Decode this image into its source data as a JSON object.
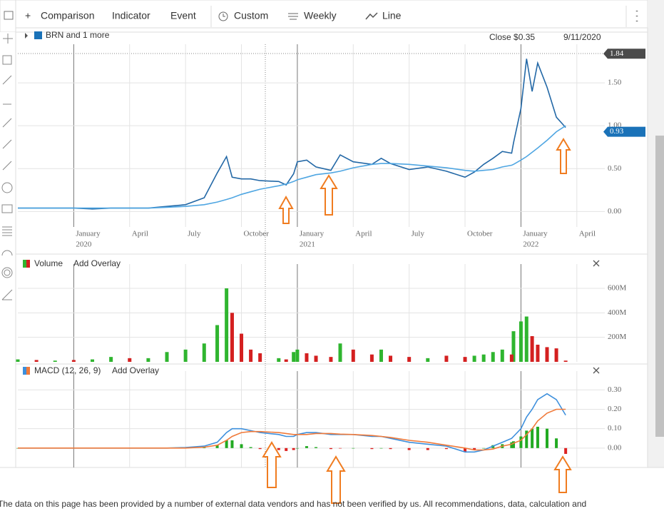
{
  "toolbar": {
    "items": [
      "Comparison",
      "Indicator",
      "Event",
      "Custom",
      "Weekly",
      "Line"
    ]
  },
  "chart": {
    "x": [
      0,
      1,
      2,
      3,
      4,
      5,
      6,
      7,
      8,
      9,
      10,
      10.7,
      11.2,
      11.5,
      12,
      12.5,
      13,
      14,
      14.4,
      14.8,
      15,
      15.5,
      16,
      16.8,
      17.3,
      18,
      19,
      19.5,
      20,
      21,
      22,
      23,
      24,
      24.5,
      25,
      25.5,
      26,
      26.5,
      26.6,
      27,
      27.3,
      27.6,
      27.9,
      28.4,
      28.9,
      29.4
    ],
    "xlim": [
      0,
      31.5
    ],
    "xticks": [
      {
        "value": 3,
        "label": "January",
        "year": "2020"
      },
      {
        "value": 6,
        "label": "April"
      },
      {
        "value": 9,
        "label": "July"
      },
      {
        "value": 12,
        "label": "October"
      },
      {
        "value": 15,
        "label": "January",
        "year": "2021"
      },
      {
        "value": 18,
        "label": "April"
      },
      {
        "value": 21,
        "label": "July"
      },
      {
        "value": 24,
        "label": "October"
      },
      {
        "value": 27,
        "label": "January",
        "year": "2022"
      },
      {
        "value": 30,
        "label": "April"
      }
    ],
    "price": {
      "type": "line",
      "legend": "BRN and 1 more",
      "close": "Close $0.35",
      "date": "9/11/2020",
      "ylim": [
        -0.18,
        1.95
      ],
      "yticks": [
        {
          "value": 0,
          "label": "0.00"
        },
        {
          "value": 0.5,
          "label": "0.50"
        },
        {
          "value": 1,
          "label": "1.00"
        },
        {
          "value": 1.5,
          "label": "1.50"
        }
      ],
      "series": [
        {
          "color": "#2368a6",
          "values": [
            0.04,
            0.04,
            0.04,
            0.04,
            0.03,
            0.04,
            0.04,
            0.04,
            0.06,
            0.08,
            0.16,
            0.45,
            0.64,
            0.4,
            0.38,
            0.38,
            0.36,
            0.35,
            0.31,
            0.44,
            0.58,
            0.6,
            0.52,
            0.48,
            0.66,
            0.58,
            0.55,
            0.62,
            0.56,
            0.49,
            0.52,
            0.47,
            0.4,
            0.46,
            0.55,
            0.62,
            0.7,
            0.68,
            0.8,
            1.2,
            1.78,
            1.4,
            1.73,
            1.45,
            1.1,
            0.98
          ]
        },
        {
          "color": "#4fa6e2",
          "values": [
            0.04,
            0.04,
            0.04,
            0.04,
            0.04,
            0.04,
            0.04,
            0.04,
            0.05,
            0.06,
            0.08,
            0.11,
            0.14,
            0.16,
            0.2,
            0.23,
            0.26,
            0.3,
            0.32,
            0.35,
            0.37,
            0.4,
            0.43,
            0.45,
            0.47,
            0.51,
            0.55,
            0.56,
            0.56,
            0.55,
            0.53,
            0.51,
            0.48,
            0.47,
            0.48,
            0.49,
            0.52,
            0.54,
            0.55,
            0.6,
            0.64,
            0.69,
            0.74,
            0.83,
            0.93,
            1.0
          ]
        }
      ],
      "tags": [
        {
          "value": 1.84,
          "label": "1.84",
          "color": "#4a4a4a"
        },
        {
          "value": 0.93,
          "label": "0.93",
          "color": "#1a72b8"
        }
      ]
    },
    "volume": {
      "type": "bar",
      "title": "Volume",
      "overlay": "Add Overlay",
      "ylim": [
        0,
        740000000.0
      ],
      "yticks": [
        {
          "value": 200000000.0,
          "label": "200M"
        },
        {
          "value": 400000000.0,
          "label": "400M"
        },
        {
          "value": 600000000.0,
          "label": "600M"
        }
      ],
      "series": [
        {
          "color": "#2fb52f",
          "values": [
            20000000.0,
            null,
            10000000.0,
            null,
            20000000.0,
            40000000.0,
            null,
            30000000.0,
            80000000.0,
            100000000.0,
            150000000.0,
            300000000.0,
            600000000.0,
            null,
            null,
            null,
            null,
            30000000.0,
            null,
            80000000.0,
            100000000.0,
            null,
            null,
            null,
            150000000.0,
            null,
            null,
            100000000.0,
            null,
            null,
            30000000.0,
            null,
            null,
            50000000.0,
            60000000.0,
            80000000.0,
            100000000.0,
            null,
            250000000.0,
            330000000.0,
            370000000.0,
            null,
            null,
            null,
            null,
            null
          ]
        },
        {
          "color": "#d42020",
          "values": [
            null,
            15000000.0,
            null,
            15000000.0,
            null,
            null,
            30000000.0,
            null,
            null,
            null,
            null,
            null,
            null,
            400000000.0,
            230000000.0,
            100000000.0,
            70000000.0,
            null,
            20000000.0,
            null,
            null,
            70000000.0,
            50000000.0,
            40000000.0,
            null,
            100000000.0,
            60000000.0,
            null,
            50000000.0,
            40000000.0,
            null,
            50000000.0,
            40000000.0,
            null,
            null,
            null,
            null,
            60000000.0,
            null,
            null,
            null,
            210000000.0,
            140000000.0,
            120000000.0,
            110000000.0,
            10000000.0
          ]
        }
      ]
    },
    "macd": {
      "type": "line",
      "title": "MACD (12, 26, 9)",
      "overlay": "Add Overlay",
      "ylim": [
        -0.1,
        0.36
      ],
      "yticks": [
        {
          "value": 0,
          "label": "0.00"
        },
        {
          "value": 0.1,
          "label": "0.10"
        },
        {
          "value": 0.2,
          "label": "0.20"
        },
        {
          "value": 0.3,
          "label": "0.30"
        }
      ],
      "series": [
        {
          "color": "#3d8fdc",
          "values": [
            0,
            0,
            0,
            0,
            0,
            0,
            0,
            0,
            0,
            0.003,
            0.01,
            0.03,
            0.08,
            0.1,
            0.1,
            0.09,
            0.08,
            0.07,
            0.06,
            0.06,
            0.07,
            0.08,
            0.08,
            0.07,
            0.07,
            0.07,
            0.06,
            0.06,
            0.05,
            0.03,
            0.02,
            0.01,
            -0.02,
            -0.02,
            -0.01,
            0.01,
            0.03,
            0.05,
            0.06,
            0.1,
            0.16,
            0.2,
            0.25,
            0.28,
            0.25,
            0.17
          ]
        },
        {
          "color": "#f07a3a",
          "values": [
            0,
            0,
            0,
            0,
            0,
            0,
            0,
            0,
            0,
            0,
            0.005,
            0.015,
            0.04,
            0.06,
            0.08,
            0.085,
            0.085,
            0.08,
            0.075,
            0.07,
            0.07,
            0.07,
            0.075,
            0.075,
            0.072,
            0.07,
            0.065,
            0.06,
            0.055,
            0.04,
            0.03,
            0.015,
            0,
            -0.01,
            -0.01,
            -0.005,
            0.01,
            0.02,
            0.025,
            0.04,
            0.07,
            0.1,
            0.14,
            0.18,
            0.2,
            0.2
          ]
        }
      ],
      "histogram": {
        "up_color": "#22aa22",
        "down_color": "#dd2222",
        "values": [
          0,
          0,
          0,
          0,
          0,
          0,
          0,
          0,
          0,
          0.003,
          0.005,
          0.015,
          0.04,
          0.04,
          0.02,
          0.005,
          -0.005,
          -0.01,
          -0.015,
          -0.01,
          0,
          0.01,
          0.005,
          -0.005,
          -0.002,
          0,
          -0.005,
          0,
          -0.005,
          -0.01,
          -0.01,
          -0.005,
          -0.02,
          -0.01,
          0,
          0.015,
          0.02,
          0.03,
          0.035,
          0.06,
          0.09,
          0.1,
          0.11,
          0.1,
          0.05,
          -0.03
        ]
      }
    }
  },
  "footer": "The data on this page has been provided by a number of external data vendors and has not been verified by us. All recommendations, data, calculation and"
}
